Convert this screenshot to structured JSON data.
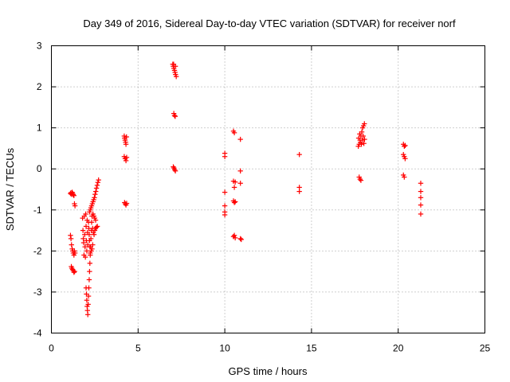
{
  "chart_data": {
    "type": "scatter",
    "title": "Day 349 of 2016, Sidereal Day-to-day VTEC variation (SDTVAR) for receiver norf",
    "xlabel": "GPS time / hours",
    "ylabel": "SDTVAR / TECUs",
    "xlim": [
      0,
      25
    ],
    "ylim": [
      -4,
      3
    ],
    "xticks": [
      0,
      5,
      10,
      15,
      20,
      25
    ],
    "yticks": [
      -4,
      -3,
      -2,
      -1,
      0,
      1,
      2,
      3
    ],
    "grid": true,
    "marker": "+",
    "color": "#ff0000",
    "series": [
      {
        "name": "SDTVAR",
        "points": [
          [
            1.1,
            -0.6
          ],
          [
            1.13,
            -0.58
          ],
          [
            1.16,
            -0.62
          ],
          [
            1.2,
            -0.57
          ],
          [
            1.23,
            -0.6
          ],
          [
            1.26,
            -0.63
          ],
          [
            1.3,
            -0.65
          ],
          [
            1.33,
            -0.85
          ],
          [
            1.36,
            -0.9
          ],
          [
            1.1,
            -1.62
          ],
          [
            1.13,
            -1.7
          ],
          [
            1.16,
            -1.85
          ],
          [
            1.2,
            -1.95
          ],
          [
            1.23,
            -2.0
          ],
          [
            1.26,
            -2.05
          ],
          [
            1.3,
            -2.1
          ],
          [
            1.33,
            -2.0
          ],
          [
            1.36,
            -2.05
          ],
          [
            1.15,
            -2.38
          ],
          [
            1.18,
            -2.42
          ],
          [
            1.22,
            -2.45
          ],
          [
            1.26,
            -2.48
          ],
          [
            1.3,
            -2.52
          ],
          [
            1.34,
            -2.5
          ],
          [
            1.8,
            -1.2
          ],
          [
            1.82,
            -1.5
          ],
          [
            1.84,
            -1.7
          ],
          [
            1.86,
            -1.8
          ],
          [
            1.88,
            -2.1
          ],
          [
            1.9,
            -1.15
          ],
          [
            1.92,
            -1.6
          ],
          [
            1.94,
            -1.9
          ],
          [
            1.96,
            -2.15
          ],
          [
            1.98,
            -1.1
          ],
          [
            2.0,
            -1.4
          ],
          [
            2.02,
            -1.75
          ],
          [
            2.04,
            -2.0
          ],
          [
            2.06,
            -1.25
          ],
          [
            2.08,
            -1.55
          ],
          [
            2.1,
            -1.85
          ],
          [
            2.0,
            -2.9
          ],
          [
            2.02,
            -3.05
          ],
          [
            2.04,
            -3.2
          ],
          [
            2.06,
            -3.35
          ],
          [
            2.08,
            -3.45
          ],
          [
            2.1,
            -3.55
          ],
          [
            2.12,
            -3.3
          ],
          [
            2.14,
            -3.1
          ],
          [
            2.16,
            -2.9
          ],
          [
            2.18,
            -2.7
          ],
          [
            2.2,
            -2.5
          ],
          [
            2.22,
            -2.3
          ],
          [
            2.24,
            -2.1
          ],
          [
            2.26,
            -1.9
          ],
          [
            2.28,
            -1.7
          ],
          [
            2.3,
            -1.5
          ],
          [
            2.32,
            -1.3
          ],
          [
            2.34,
            -1.15
          ],
          [
            2.14,
            -1.3
          ],
          [
            2.16,
            -1.45
          ],
          [
            2.18,
            -1.6
          ],
          [
            2.2,
            -1.75
          ],
          [
            2.22,
            -1.9
          ],
          [
            2.24,
            -2.05
          ],
          [
            2.2,
            -1.05
          ],
          [
            2.24,
            -1.0
          ],
          [
            2.28,
            -0.95
          ],
          [
            2.32,
            -0.9
          ],
          [
            2.36,
            -0.85
          ],
          [
            2.4,
            -0.8
          ],
          [
            2.44,
            -0.75
          ],
          [
            2.48,
            -0.7
          ],
          [
            2.52,
            -0.62
          ],
          [
            2.56,
            -0.55
          ],
          [
            2.6,
            -0.47
          ],
          [
            2.64,
            -0.4
          ],
          [
            2.68,
            -0.33
          ],
          [
            2.72,
            -0.27
          ],
          [
            2.38,
            -1.45
          ],
          [
            2.42,
            -1.55
          ],
          [
            2.46,
            -1.6
          ],
          [
            2.5,
            -1.5
          ],
          [
            2.55,
            -1.45
          ],
          [
            2.6,
            -1.42
          ],
          [
            2.65,
            -1.4
          ],
          [
            2.4,
            -1.1
          ],
          [
            2.45,
            -1.15
          ],
          [
            2.5,
            -1.2
          ],
          [
            2.55,
            -1.25
          ],
          [
            2.3,
            -2.0
          ],
          [
            2.34,
            -1.95
          ],
          [
            2.38,
            -1.85
          ],
          [
            4.2,
            0.8
          ],
          [
            4.22,
            0.75
          ],
          [
            4.25,
            0.7
          ],
          [
            4.28,
            0.65
          ],
          [
            4.3,
            0.6
          ],
          [
            4.33,
            0.78
          ],
          [
            4.2,
            0.3
          ],
          [
            4.25,
            0.25
          ],
          [
            4.3,
            0.2
          ],
          [
            4.34,
            0.28
          ],
          [
            4.22,
            -0.82
          ],
          [
            4.26,
            -0.85
          ],
          [
            4.3,
            -0.88
          ],
          [
            4.34,
            -0.84
          ],
          [
            7.0,
            2.55
          ],
          [
            7.03,
            2.5
          ],
          [
            7.06,
            2.45
          ],
          [
            7.1,
            2.4
          ],
          [
            7.13,
            2.35
          ],
          [
            7.16,
            2.3
          ],
          [
            7.2,
            2.25
          ],
          [
            7.05,
            2.55
          ],
          [
            7.15,
            2.5
          ],
          [
            7.06,
            1.35
          ],
          [
            7.1,
            1.3
          ],
          [
            7.14,
            1.28
          ],
          [
            7.03,
            0.05
          ],
          [
            7.07,
            0.02
          ],
          [
            7.11,
            -0.02
          ],
          [
            7.15,
            -0.05
          ],
          [
            10.0,
            0.38
          ],
          [
            10.0,
            0.3
          ],
          [
            10.0,
            -0.57
          ],
          [
            10.0,
            -0.9
          ],
          [
            10.0,
            -1.05
          ],
          [
            10.0,
            -1.12
          ],
          [
            10.5,
            0.92
          ],
          [
            10.55,
            0.88
          ],
          [
            10.5,
            -0.3
          ],
          [
            10.55,
            -0.45
          ],
          [
            10.6,
            -0.32
          ],
          [
            10.5,
            -0.78
          ],
          [
            10.55,
            -0.82
          ],
          [
            10.6,
            -0.8
          ],
          [
            10.5,
            -1.65
          ],
          [
            10.55,
            -1.62
          ],
          [
            10.6,
            -1.68
          ],
          [
            10.9,
            0.72
          ],
          [
            10.9,
            -0.05
          ],
          [
            10.9,
            -0.35
          ],
          [
            10.9,
            -1.7
          ],
          [
            10.95,
            -1.72
          ],
          [
            14.3,
            0.35
          ],
          [
            14.3,
            -0.45
          ],
          [
            14.3,
            -0.55
          ],
          [
            17.7,
            0.55
          ],
          [
            17.75,
            0.6
          ],
          [
            17.8,
            0.7
          ],
          [
            17.85,
            0.8
          ],
          [
            17.9,
            0.9
          ],
          [
            17.95,
            1.0
          ],
          [
            18.0,
            1.05
          ],
          [
            18.05,
            1.1
          ],
          [
            17.72,
            0.75
          ],
          [
            17.78,
            0.85
          ],
          [
            17.82,
            0.65
          ],
          [
            17.88,
            0.6
          ],
          [
            17.92,
            0.7
          ],
          [
            17.98,
            0.8
          ],
          [
            18.02,
            0.62
          ],
          [
            18.06,
            0.72
          ],
          [
            17.75,
            -0.2
          ],
          [
            17.8,
            -0.25
          ],
          [
            17.85,
            -0.28
          ],
          [
            20.3,
            0.6
          ],
          [
            20.35,
            0.55
          ],
          [
            20.4,
            0.57
          ],
          [
            20.3,
            0.35
          ],
          [
            20.35,
            0.3
          ],
          [
            20.4,
            0.25
          ],
          [
            20.3,
            -0.15
          ],
          [
            20.35,
            -0.2
          ],
          [
            21.3,
            -0.35
          ],
          [
            21.3,
            -0.55
          ],
          [
            21.3,
            -0.7
          ],
          [
            21.3,
            -0.88
          ],
          [
            21.3,
            -1.1
          ]
        ]
      }
    ]
  }
}
